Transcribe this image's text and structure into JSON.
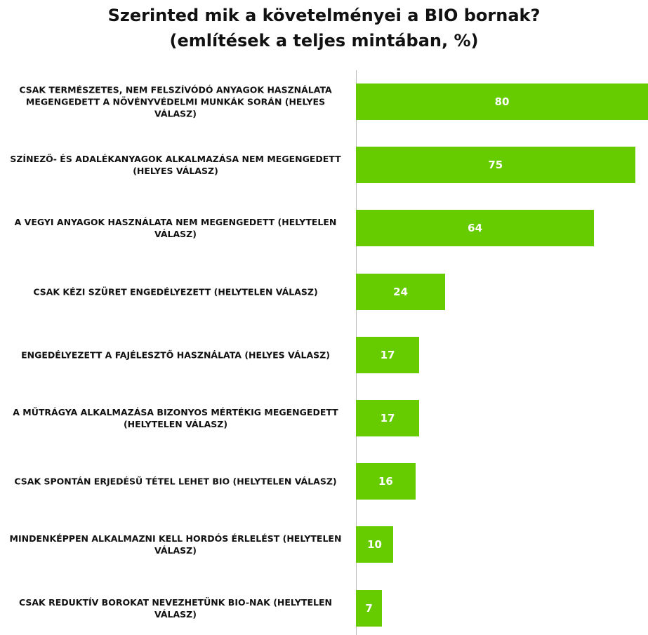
{
  "chart_data": {
    "type": "bar",
    "orientation": "horizontal",
    "title": [
      "Szerinted mik a követelményei a BIO bornak?",
      "(említések a teljes mintában, %)"
    ],
    "categories": [
      "CSAK TERMÉSZETES, NEM FELSZÍVÓDÓ ANYAGOK HASZNÁLATA MEGENGEDETT A NÖVÉNYVÉDELMI MUNKÁK SORÁN (HELYES VÁLASZ)",
      "SZÍNEZŐ- ÉS ADALÉKANYAGOK ALKALMAZÁSA NEM MEGENGEDETT (HELYES VÁLASZ)",
      "A VEGYI ANYAGOK HASZNÁLATA NEM MEGENGEDETT (HELYTELEN VÁLASZ)",
      "CSAK KÉZI SZÜRET ENGEDÉLYEZETT (HELYTELEN VÁLASZ)",
      "ENGEDÉLYEZETT A FAJÉLESZTŐ HASZNÁLATA (HELYES VÁLASZ)",
      "A MŰTRÁGYA ALKALMAZÁSA BIZONYOS MÉRTÉKIG MEGENGEDETT (HELYTELEN VÁLASZ)",
      "CSAK SPONTÁN ERJEDÉSŰ TÉTEL LEHET BIO (HELYTELEN VÁLASZ)",
      "MINDENKÉPPEN ALKALMAZNI KELL HORDÓS ÉRLELÉST (HELYTELEN VÁLASZ)",
      "CSAK REDUKTÍV BOROKAT NEVEZHETÜNK BIO-NAK (HELYTELEN VÁLASZ)"
    ],
    "values": [
      80,
      75,
      64,
      24,
      17,
      17,
      16,
      10,
      7
    ],
    "color": "#66cc00"
  }
}
